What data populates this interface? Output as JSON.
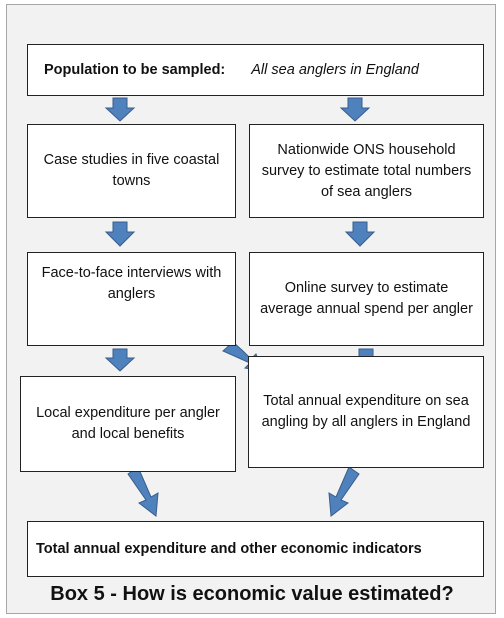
{
  "nodes": [
    {
      "label": "Population to be sampled:",
      "detail": "All sea anglers in England"
    },
    {
      "label": "Case studies in five coastal towns"
    },
    {
      "label": "Nationwide ONS household survey to estimate total numbers of sea anglers"
    },
    {
      "label": "Face-to-face interviews with anglers"
    },
    {
      "label": "Online survey  to estimate average annual spend per angler"
    },
    {
      "label": "Local expenditure per angler and local benefits"
    },
    {
      "label": "Total annual expenditure on sea angling by all anglers in England"
    },
    {
      "label": "Total annual expenditure and other economic indicators"
    }
  ],
  "caption": "Box 5 - How is economic value estimated?"
}
